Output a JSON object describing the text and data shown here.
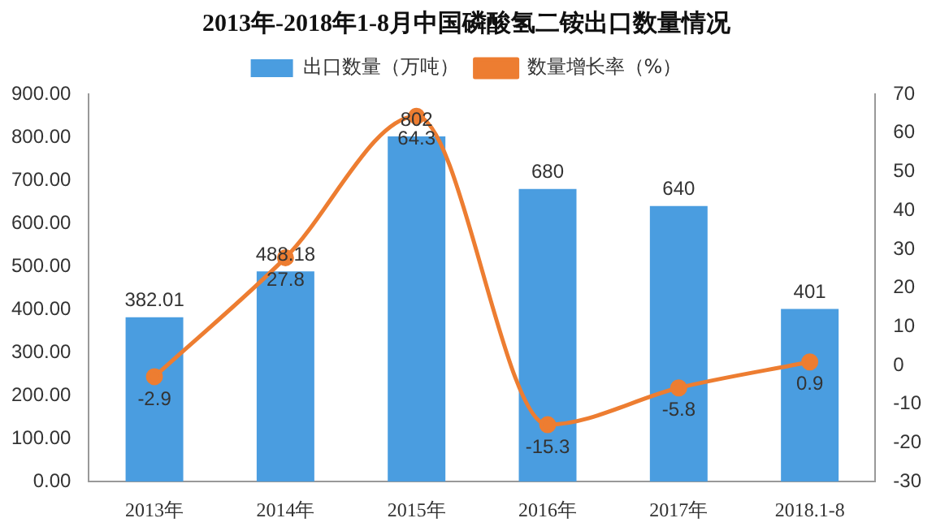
{
  "chart_data": {
    "type": "bar",
    "title": "2013年-2018年1-8月中国磷酸氢二铵出口数量情况",
    "categories": [
      "2013年",
      "2014年",
      "2015年",
      "2016年",
      "2017年",
      "2018.1-8"
    ],
    "series": [
      {
        "name": "出口数量（万吨）",
        "color": "#4a9de0",
        "values": [
          382.01,
          488.18,
          802,
          680,
          640,
          401
        ]
      },
      {
        "name": "数量增长率（%）",
        "type": "line",
        "axis": "y2",
        "color": "#ed7d31",
        "values": [
          -2.9,
          27.8,
          64.3,
          -15.3,
          -5.8,
          0.9
        ]
      }
    ],
    "ylim": [
      0,
      900
    ],
    "yticks": [
      {
        "value": 0,
        "label": "0.00"
      },
      {
        "value": 100,
        "label": "100.00"
      },
      {
        "value": 200,
        "label": "200.00"
      },
      {
        "value": 300,
        "label": "300.00"
      },
      {
        "value": 400,
        "label": "400.00"
      },
      {
        "value": 500,
        "label": "500.00"
      },
      {
        "value": 600,
        "label": "600.00"
      },
      {
        "value": 700,
        "label": "700.00"
      },
      {
        "value": 800,
        "label": "800.00"
      },
      {
        "value": 900,
        "label": "900.00"
      }
    ],
    "y2lim": [
      -30,
      70
    ],
    "y2ticks": [
      -30,
      -20,
      -10,
      0,
      10,
      20,
      30,
      40,
      50,
      60,
      70
    ],
    "data_labels": true,
    "legend": "top",
    "grid": false,
    "marker": "circle"
  }
}
